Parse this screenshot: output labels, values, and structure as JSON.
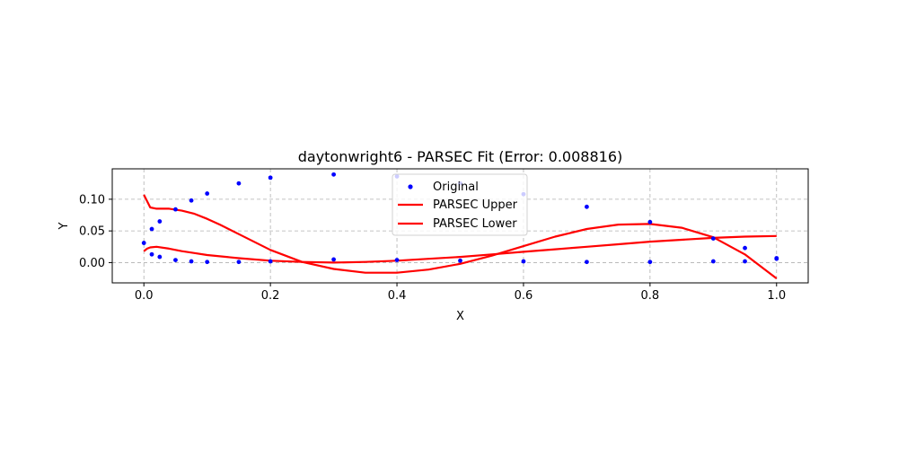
{
  "chart_data": {
    "type": "line",
    "title": "daytonwright6 - PARSEC Fit (Error: 0.008816)",
    "xlabel": "X",
    "ylabel": "Y",
    "xlim": [
      -0.05,
      1.05
    ],
    "ylim": [
      -0.032,
      0.148
    ],
    "xticks": [
      0.0,
      0.2,
      0.4,
      0.6,
      0.8,
      1.0
    ],
    "xtick_labels": [
      "0.0",
      "0.2",
      "0.4",
      "0.6",
      "0.8",
      "1.0"
    ],
    "yticks": [
      0.0,
      0.05,
      0.1
    ],
    "ytick_labels": [
      "0.00",
      "0.05",
      "0.10"
    ],
    "grid": true,
    "legend_position": "top-center",
    "legend": [
      "Original",
      "PARSEC Upper",
      "PARSEC Lower"
    ],
    "colors": {
      "original": "#0000ff",
      "upper": "#ff0000",
      "lower": "#ff0000",
      "grid": "#b0b0b0"
    },
    "original_points": {
      "x": [
        0.0,
        0.0125,
        0.025,
        0.05,
        0.075,
        0.1,
        0.15,
        0.2,
        0.3,
        0.4,
        0.5,
        0.6,
        0.7,
        0.8,
        0.9,
        0.95,
        1.0,
        0.0125,
        0.025,
        0.05,
        0.075,
        0.1,
        0.15,
        0.2,
        0.3,
        0.4,
        0.5,
        0.6,
        0.7,
        0.8,
        0.9,
        0.95,
        1.0
      ],
      "y": [
        0.031,
        0.053,
        0.065,
        0.084,
        0.098,
        0.109,
        0.125,
        0.134,
        0.139,
        0.136,
        0.125,
        0.108,
        0.088,
        0.064,
        0.038,
        0.023,
        0.007,
        0.013,
        0.009,
        0.004,
        0.002,
        0.001,
        0.001,
        0.002,
        0.005,
        0.004,
        0.003,
        0.002,
        0.001,
        0.001,
        0.002,
        0.002,
        0.006
      ]
    },
    "series": [
      {
        "name": "PARSEC Upper",
        "x": [
          0.0,
          0.005,
          0.01,
          0.02,
          0.04,
          0.06,
          0.08,
          0.1,
          0.12,
          0.15,
          0.2,
          0.25,
          0.3,
          0.35,
          0.4,
          0.45,
          0.5,
          0.55,
          0.6,
          0.65,
          0.7,
          0.75,
          0.8,
          0.85,
          0.9,
          0.95,
          1.0
        ],
        "y": [
          0.107,
          0.097,
          0.087,
          0.085,
          0.085,
          0.082,
          0.077,
          0.069,
          0.06,
          0.045,
          0.02,
          0.001,
          -0.01,
          -0.016,
          -0.016,
          -0.011,
          -0.002,
          0.011,
          0.026,
          0.041,
          0.053,
          0.06,
          0.061,
          0.055,
          0.04,
          0.013,
          -0.025
        ]
      },
      {
        "name": "PARSEC Lower",
        "x": [
          0.0,
          0.005,
          0.01,
          0.02,
          0.04,
          0.06,
          0.08,
          0.1,
          0.15,
          0.2,
          0.25,
          0.3,
          0.35,
          0.4,
          0.45,
          0.5,
          0.55,
          0.6,
          0.65,
          0.7,
          0.75,
          0.8,
          0.85,
          0.9,
          0.95,
          1.0
        ],
        "y": [
          0.018,
          0.022,
          0.024,
          0.025,
          0.022,
          0.018,
          0.015,
          0.012,
          0.007,
          0.003,
          0.001,
          0.0,
          0.001,
          0.003,
          0.006,
          0.009,
          0.013,
          0.017,
          0.021,
          0.025,
          0.029,
          0.033,
          0.036,
          0.039,
          0.041,
          0.042
        ]
      }
    ]
  }
}
